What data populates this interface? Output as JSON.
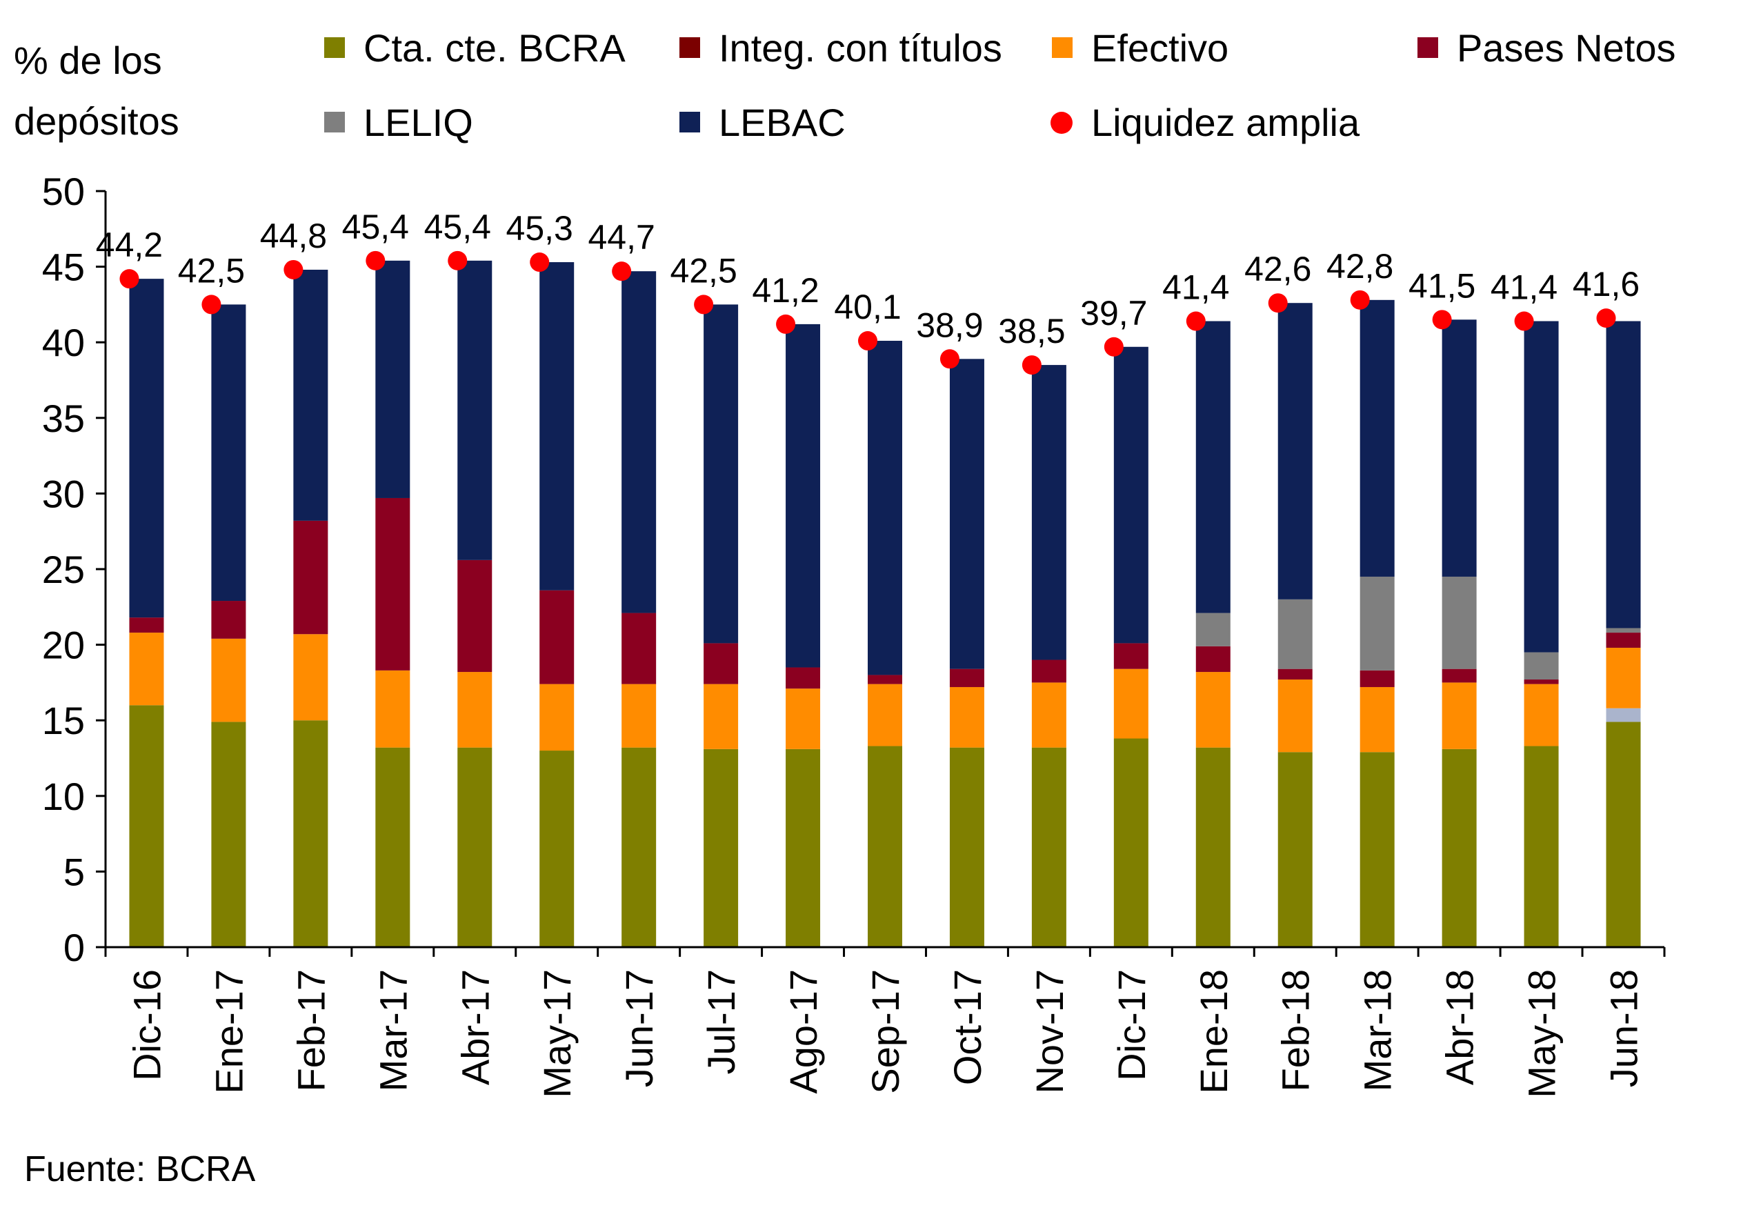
{
  "chart_data": {
    "type": "bar",
    "stacked": true,
    "ylabel_lines": [
      "% de los",
      "depósitos"
    ],
    "source": "Fuente: BCRA",
    "ylim": [
      0,
      50
    ],
    "yticks": [
      0,
      5,
      10,
      15,
      20,
      25,
      30,
      35,
      40,
      45,
      50
    ],
    "categories": [
      "Dic-16",
      "Ene-17",
      "Feb-17",
      "Mar-17",
      "Abr-17",
      "May-17",
      "Jun-17",
      "Jul-17",
      "Ago-17",
      "Sep-17",
      "Oct-17",
      "Nov-17",
      "Dic-17",
      "Ene-18",
      "Feb-18",
      "Mar-18",
      "Abr-18",
      "May-18",
      "Jun-18"
    ],
    "series": [
      {
        "name": "Cta. cte. BCRA",
        "color": "#7f7f00",
        "values": [
          16.0,
          14.9,
          15.0,
          13.2,
          13.2,
          13.0,
          13.2,
          13.1,
          13.1,
          13.3,
          13.2,
          13.2,
          13.8,
          13.2,
          12.9,
          12.9,
          13.1,
          13.3,
          14.9
        ]
      },
      {
        "name": "Integ. con títulos",
        "color": "#7b0000",
        "values": [
          0,
          0,
          0,
          0,
          0,
          0,
          0,
          0,
          0,
          0,
          0,
          0,
          0,
          0,
          0,
          0,
          0,
          0,
          0
        ]
      },
      {
        "name": "Efectivo",
        "color": "#ff8c00",
        "values": [
          4.8,
          5.5,
          5.7,
          5.1,
          5.0,
          4.4,
          4.2,
          4.3,
          4.0,
          4.1,
          4.0,
          4.3,
          4.6,
          5.0,
          4.8,
          4.3,
          4.4,
          4.1,
          4.0
        ]
      },
      {
        "name": "Pases Netos",
        "color": "#8b0020",
        "values": [
          1.0,
          2.5,
          7.5,
          11.4,
          7.4,
          6.2,
          4.7,
          2.7,
          1.4,
          0.6,
          1.2,
          1.5,
          1.7,
          1.7,
          0.7,
          1.1,
          0.9,
          0.3,
          1.0
        ]
      },
      {
        "name": "LELIQ",
        "color": "#7f7f7f",
        "values": [
          0,
          0,
          0,
          0,
          0,
          0,
          0,
          0,
          0,
          0,
          0,
          0,
          0,
          2.2,
          4.6,
          6.2,
          6.1,
          1.8,
          0.3
        ]
      },
      {
        "name": "LEBAC",
        "color": "#0f2156",
        "values": [
          22.4,
          19.6,
          16.6,
          15.7,
          19.8,
          21.7,
          22.6,
          22.4,
          22.7,
          22.1,
          20.5,
          19.5,
          19.6,
          19.3,
          19.6,
          18.3,
          17.0,
          21.9,
          20.3
        ]
      }
    ],
    "extra_segment": {
      "name": "",
      "color": "#aab4cc",
      "values": [
        0,
        0,
        0,
        0,
        0,
        0,
        0,
        0,
        0,
        0,
        0,
        0,
        0,
        0,
        0,
        0,
        0,
        0,
        0.9
      ]
    },
    "liquidity": {
      "name": "Liquidez amplia",
      "color": "#ff0000",
      "values": [
        44.2,
        42.5,
        44.8,
        45.4,
        45.4,
        45.3,
        44.7,
        42.5,
        41.2,
        40.1,
        38.9,
        38.5,
        39.7,
        41.4,
        42.6,
        42.8,
        41.5,
        41.4,
        41.6
      ],
      "labels": [
        "44,2",
        "42,5",
        "44,8",
        "45,4",
        "45,4",
        "45,3",
        "44,7",
        "42,5",
        "41,2",
        "40,1",
        "38,9",
        "38,5",
        "39,7",
        "41,4",
        "42,6",
        "42,8",
        "41,5",
        "41,4",
        "41,6"
      ]
    },
    "legend": [
      {
        "label": "Cta. cte. BCRA",
        "color": "#7f7f00",
        "marker": "square"
      },
      {
        "label": "Integ. con títulos",
        "color": "#7b0000",
        "marker": "square"
      },
      {
        "label": "Efectivo",
        "color": "#ff8c00",
        "marker": "square"
      },
      {
        "label": "Pases Netos",
        "color": "#8b0020",
        "marker": "square"
      },
      {
        "label": "LELIQ",
        "color": "#7f7f7f",
        "marker": "square"
      },
      {
        "label": "LEBAC",
        "color": "#0f2156",
        "marker": "square"
      },
      {
        "label": "Liquidez amplia",
        "color": "#ff0000",
        "marker": "circle"
      }
    ]
  }
}
